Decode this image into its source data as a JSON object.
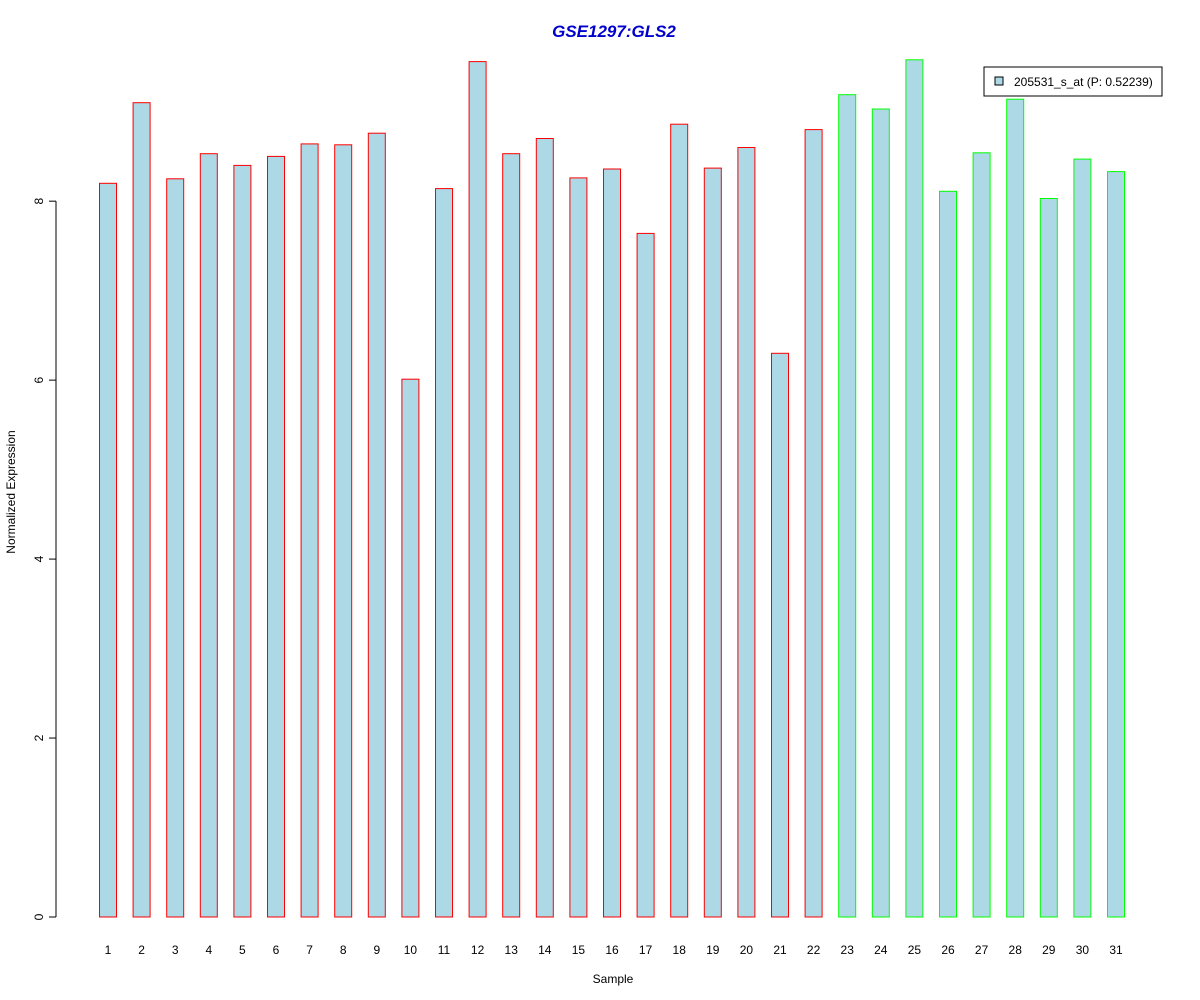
{
  "chart_data": {
    "type": "bar",
    "title": "GSE1297:GLS2",
    "xlabel": "Sample",
    "ylabel": "Normalized Expression",
    "ylim": [
      0,
      9.6
    ],
    "yticks": [
      0,
      2,
      4,
      6,
      8
    ],
    "categories": [
      "1",
      "2",
      "3",
      "4",
      "5",
      "6",
      "7",
      "8",
      "9",
      "10",
      "11",
      "12",
      "13",
      "14",
      "15",
      "16",
      "17",
      "18",
      "19",
      "20",
      "21",
      "22",
      "23",
      "24",
      "25",
      "26",
      "27",
      "28",
      "29",
      "30",
      "31"
    ],
    "series": [
      {
        "name": "205531_s_at (P: 0.52239)",
        "values": [
          8.2,
          9.1,
          8.25,
          8.53,
          8.4,
          8.5,
          8.64,
          8.63,
          8.76,
          6.01,
          8.14,
          9.56,
          8.53,
          8.7,
          8.26,
          8.36,
          7.64,
          8.86,
          8.37,
          8.6,
          6.3,
          8.8,
          9.19,
          9.03,
          9.58,
          8.11,
          8.54,
          9.14,
          8.03,
          8.47,
          8.33
        ]
      }
    ],
    "bar_fill": "#add8e6",
    "group_border_colors": [
      "#ff0000",
      "#ff0000",
      "#ff0000",
      "#ff0000",
      "#ff0000",
      "#ff0000",
      "#ff0000",
      "#ff0000",
      "#ff0000",
      "#ff0000",
      "#ff0000",
      "#ff0000",
      "#ff0000",
      "#ff0000",
      "#ff0000",
      "#ff0000",
      "#ff0000",
      "#ff0000",
      "#ff0000",
      "#ff0000",
      "#ff0000",
      "#ff0000",
      "#00ff00",
      "#00ff00",
      "#00ff00",
      "#00ff00",
      "#00ff00",
      "#00ff00",
      "#00ff00",
      "#00ff00",
      "#00ff00"
    ],
    "title_color": "#0000cc",
    "legend_position": "top-right",
    "grid": false
  }
}
